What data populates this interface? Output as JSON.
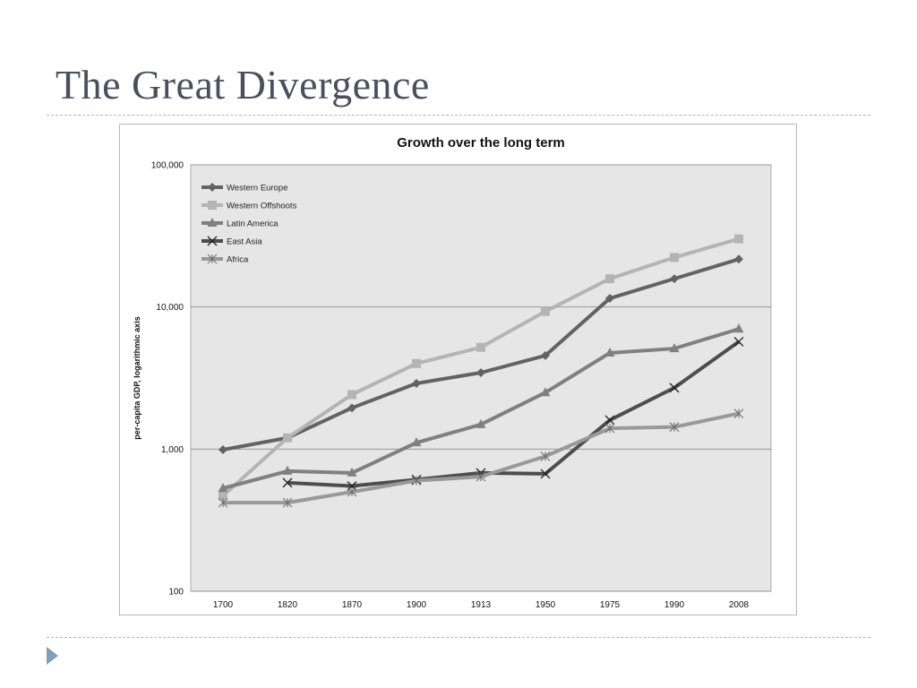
{
  "slide": {
    "title": "The Great Divergence"
  },
  "chart_data": {
    "type": "line",
    "title": "Growth over the long term",
    "ylabel": "per-capita GDP, logarithmic axis",
    "xlabel": "",
    "y_scale": "log",
    "ylim": [
      100,
      100000
    ],
    "y_ticks": [
      100,
      1000,
      10000,
      100000
    ],
    "y_tick_labels": [
      "100",
      "1,000",
      "10,000",
      "100,000"
    ],
    "categories": [
      "1700",
      "1820",
      "1870",
      "1900",
      "1913",
      "1950",
      "1975",
      "1990",
      "2008"
    ],
    "grid": "horizontal major lines",
    "legend_position": "top-left inside plot",
    "series": [
      {
        "name": "Western Europe",
        "color": "#636363",
        "marker": "diamond",
        "values": [
          990,
          1200,
          1950,
          2900,
          3450,
          4550,
          11500,
          15800,
          21700
        ]
      },
      {
        "name": "Western Offshoots",
        "color": "#b4b4b4",
        "marker": "square",
        "values": [
          470,
          1200,
          2420,
          4000,
          5200,
          9300,
          15800,
          22300,
          30100
        ]
      },
      {
        "name": "Latin America",
        "color": "#808080",
        "marker": "triangle",
        "values": [
          530,
          700,
          680,
          1110,
          1490,
          2500,
          4750,
          5100,
          7000
        ]
      },
      {
        "name": "East Asia",
        "color": "#4e4e4e",
        "marker": "x",
        "values": [
          null,
          580,
          550,
          610,
          680,
          670,
          1600,
          2700,
          5700
        ]
      },
      {
        "name": "Africa",
        "color": "#999999",
        "marker": "star",
        "values": [
          420,
          420,
          500,
          600,
          640,
          890,
          1400,
          1430,
          1780
        ]
      }
    ]
  }
}
